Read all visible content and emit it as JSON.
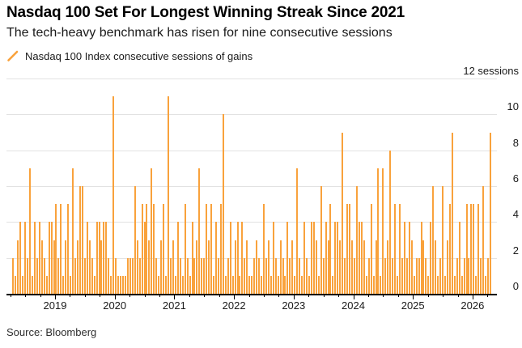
{
  "colors": {
    "bar": "#F9A23C",
    "grid": "#E2E2E2",
    "axis": "#000000",
    "text": "#1A1A1A"
  },
  "chart_data": {
    "type": "bar",
    "title": "Nasdaq 100 Set For Longest Winning Streak Since 2021",
    "subtitle": "The tech-heavy benchmark has risen for nine consecutive sessions",
    "legend": "Nasdaq 100 Index consecutive sessions of gains",
    "source": "Source: Bloomberg",
    "ylabel": "sessions",
    "ylim": [
      0,
      12
    ],
    "grid": true,
    "legend_position": "top-left",
    "y_axis": {
      "ticks": [
        0,
        2,
        4,
        6,
        8,
        10
      ],
      "top_label": "12 sessions"
    },
    "x_axis": {
      "start_year": 2018.3,
      "step_years": 0.04,
      "minor_tick_interval_years": 0.25,
      "year_labels": [
        "2019",
        "2020",
        "2021",
        "2022",
        "2023",
        "2024",
        "2025",
        "2026"
      ]
    },
    "notable_streaks": [
      {
        "approx_date": "2020.0",
        "sessions": 11
      },
      {
        "approx_date": "2020.9",
        "sessions": 11
      },
      {
        "approx_date": "2021.8",
        "sessions": 10
      },
      {
        "approx_date": "2023.8",
        "sessions": 9
      },
      {
        "approx_date": "2025.7",
        "sessions": 9
      },
      {
        "approx_date": "2026.3 (current)",
        "sessions": 9
      }
    ],
    "values": [
      2,
      1,
      3,
      4,
      1,
      4,
      2,
      7,
      1,
      4,
      2,
      4,
      3,
      2,
      1,
      4,
      4,
      3,
      5,
      2,
      5,
      1,
      3,
      5,
      1,
      7,
      2,
      3,
      6,
      6,
      2,
      4,
      3,
      2,
      1,
      4,
      4,
      3,
      4,
      4,
      2,
      1,
      11,
      2,
      1,
      1,
      1,
      1,
      2,
      2,
      2,
      6,
      3,
      2,
      5,
      4,
      5,
      3,
      7,
      5,
      2,
      1,
      3,
      5,
      1,
      11,
      2,
      3,
      1,
      4,
      2,
      1,
      5,
      2,
      1,
      4,
      2,
      3,
      7,
      2,
      2,
      5,
      3,
      5,
      1,
      4,
      2,
      5,
      10,
      1,
      2,
      4,
      1,
      3,
      4,
      1,
      4,
      2,
      3,
      1,
      1,
      2,
      3,
      2,
      1,
      5,
      2,
      3,
      1,
      4,
      2,
      1,
      3,
      2,
      1,
      4,
      2,
      3,
      1,
      7,
      2,
      1,
      4,
      2,
      1,
      4,
      4,
      3,
      1,
      6,
      2,
      4,
      3,
      5,
      1,
      4,
      4,
      3,
      9,
      2,
      5,
      5,
      3,
      2,
      6,
      4,
      4,
      3,
      1,
      2,
      5,
      1,
      3,
      7,
      1,
      7,
      2,
      3,
      8,
      2,
      5,
      1,
      5,
      2,
      4,
      2,
      4,
      3,
      1,
      2,
      2,
      4,
      3,
      2,
      1,
      4,
      6,
      3,
      1,
      2,
      6,
      1,
      3,
      5,
      9,
      1,
      2,
      4,
      1,
      2,
      5,
      2,
      5,
      5,
      1,
      5,
      2,
      6,
      1,
      2,
      9
    ]
  }
}
